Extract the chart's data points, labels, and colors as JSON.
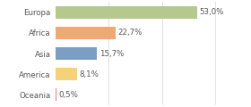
{
  "categories": [
    "Europa",
    "Africa",
    "Asia",
    "America",
    "Oceania"
  ],
  "values": [
    53.0,
    22.7,
    15.7,
    8.1,
    0.5
  ],
  "labels": [
    "53,0%",
    "22,7%",
    "15,7%",
    "8,1%",
    "0,5%"
  ],
  "colors": [
    "#b5c98e",
    "#f0a875",
    "#7b9ec4",
    "#f5d17a",
    "#e87a7a"
  ],
  "background_color": "#ffffff",
  "text_color": "#555555",
  "grid_color": "#dddddd",
  "xlim": [
    0,
    62
  ],
  "bar_height": 0.62,
  "label_fontsize": 6.2,
  "tick_fontsize": 6.2,
  "figwidth": 2.8,
  "figheight": 1.2,
  "dpi": 100
}
